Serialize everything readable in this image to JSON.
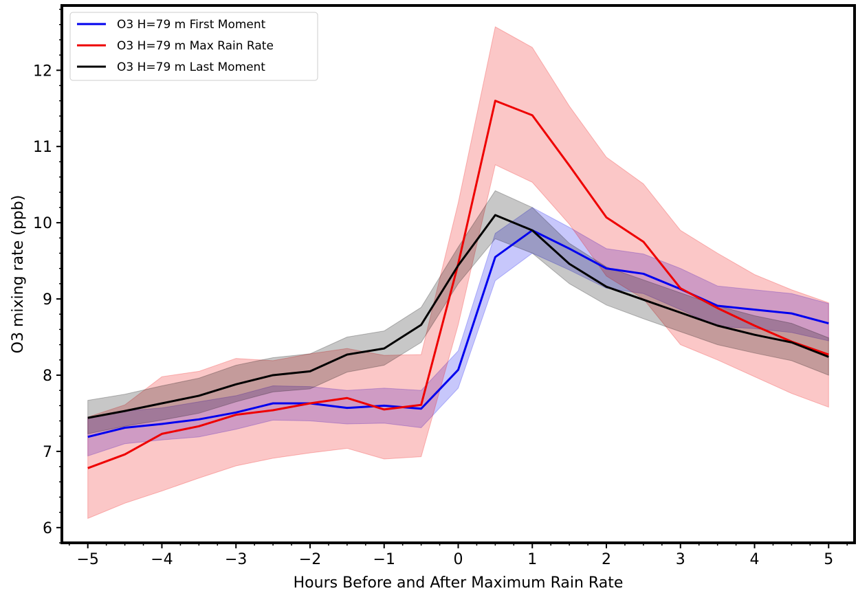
{
  "chart_data": {
    "type": "line",
    "xlabel": "Hours Before and After Maximum Rain Rate",
    "ylabel": "O3 mixing rate (ppb)",
    "xlim": [
      -5.35,
      5.35
    ],
    "ylim": [
      5.8,
      12.85
    ],
    "x_ticks": [
      -5,
      -4,
      -3,
      -2,
      -1,
      0,
      1,
      2,
      3,
      4,
      5
    ],
    "x_tick_labels": [
      "−5",
      "−4",
      "−3",
      "−2",
      "−1",
      "0",
      "1",
      "2",
      "3",
      "4",
      "5"
    ],
    "y_ticks": [
      6,
      7,
      8,
      9,
      10,
      11,
      12
    ],
    "y_tick_labels": [
      "6",
      "7",
      "8",
      "9",
      "10",
      "11",
      "12"
    ],
    "grid": false,
    "legend_position": "top-left",
    "x": [
      -5,
      -4.5,
      -4,
      -3.5,
      -3,
      -2.5,
      -2,
      -1.5,
      -1,
      -0.5,
      0,
      0.5,
      1,
      1.5,
      2,
      2.5,
      3,
      3.5,
      4,
      4.5,
      5
    ],
    "series": [
      {
        "name": "O3 H=79 m First Moment",
        "color": "#0000ee",
        "values": [
          7.19,
          7.31,
          7.36,
          7.42,
          7.51,
          7.63,
          7.63,
          7.57,
          7.6,
          7.56,
          8.07,
          9.55,
          9.9,
          9.66,
          9.4,
          9.33,
          9.13,
          8.91,
          8.86,
          8.81,
          8.68
        ],
        "lower": [
          6.94,
          7.1,
          7.15,
          7.19,
          7.29,
          7.41,
          7.4,
          7.36,
          7.37,
          7.31,
          7.83,
          9.24,
          9.6,
          9.38,
          9.14,
          9.07,
          8.86,
          8.64,
          8.61,
          8.56,
          8.45
        ],
        "upper": [
          7.44,
          7.53,
          7.57,
          7.65,
          7.73,
          7.86,
          7.85,
          7.8,
          7.83,
          7.8,
          8.32,
          9.86,
          10.2,
          9.94,
          9.66,
          9.59,
          9.4,
          9.17,
          9.12,
          9.07,
          8.94
        ]
      },
      {
        "name": "O3 H=79 m Max Rain Rate",
        "color": "#ee0000",
        "values": [
          6.78,
          6.96,
          7.23,
          7.33,
          7.48,
          7.54,
          7.63,
          7.7,
          7.55,
          7.61,
          9.46,
          11.6,
          11.41,
          10.75,
          10.07,
          9.75,
          9.14,
          8.88,
          8.65,
          8.44,
          8.27
        ],
        "lower": [
          6.12,
          6.32,
          6.48,
          6.65,
          6.81,
          6.91,
          6.98,
          7.04,
          6.9,
          6.93,
          8.66,
          10.76,
          10.53,
          9.98,
          9.3,
          9.0,
          8.4,
          8.2,
          7.98,
          7.76,
          7.58
        ],
        "upper": [
          7.45,
          7.61,
          7.98,
          8.05,
          8.22,
          8.19,
          8.28,
          8.35,
          8.26,
          8.27,
          10.26,
          12.57,
          12.3,
          11.53,
          10.86,
          10.51,
          9.9,
          9.6,
          9.32,
          9.12,
          8.95
        ]
      },
      {
        "name": "O3 H=79 m Last Moment",
        "color": "#000000",
        "values": [
          7.44,
          7.53,
          7.63,
          7.73,
          7.88,
          8.0,
          8.05,
          8.27,
          8.35,
          8.66,
          9.44,
          10.1,
          9.9,
          9.46,
          9.16,
          8.99,
          8.82,
          8.65,
          8.53,
          8.43,
          8.24
        ],
        "lower": [
          7.23,
          7.33,
          7.41,
          7.5,
          7.65,
          7.78,
          7.82,
          8.04,
          8.13,
          8.43,
          9.2,
          9.79,
          9.6,
          9.2,
          8.92,
          8.74,
          8.57,
          8.4,
          8.29,
          8.19,
          8.0
        ],
        "upper": [
          7.67,
          7.75,
          7.86,
          7.96,
          8.13,
          8.23,
          8.28,
          8.5,
          8.58,
          8.89,
          9.68,
          10.42,
          10.2,
          9.73,
          9.42,
          9.25,
          9.08,
          8.91,
          8.78,
          8.68,
          8.49
        ]
      }
    ]
  }
}
